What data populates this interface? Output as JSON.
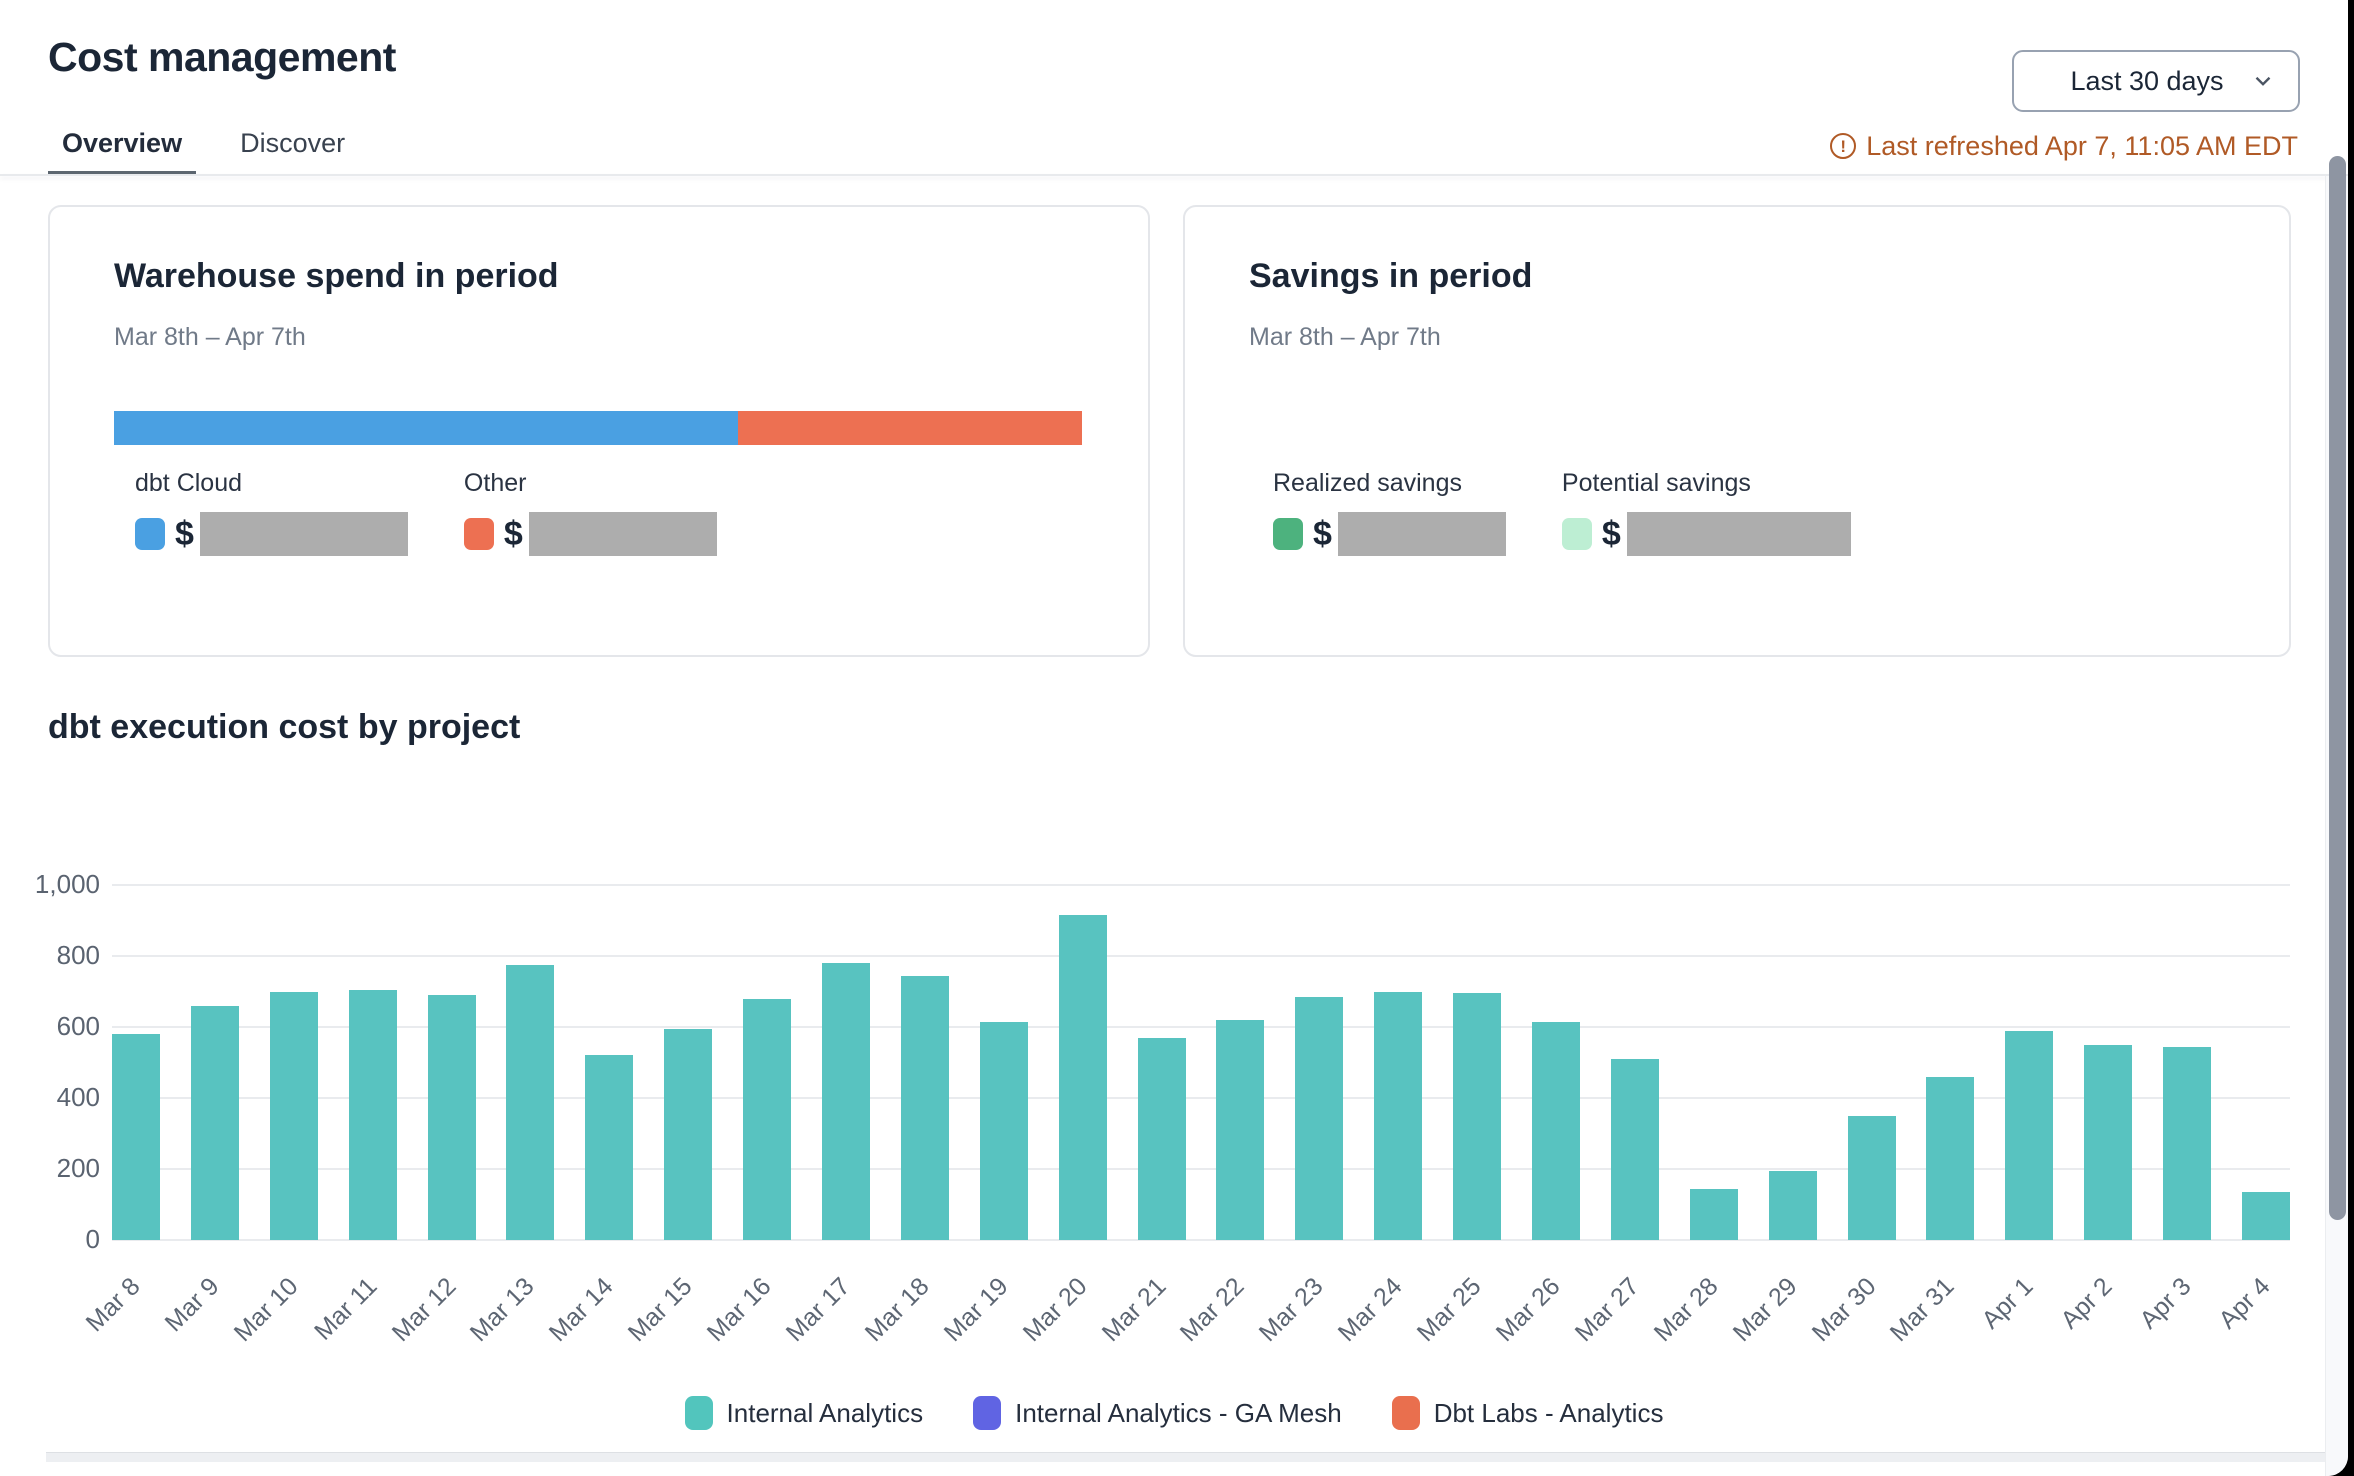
{
  "header": {
    "title": "Cost management",
    "range_select": {
      "value": "Last 30 days"
    },
    "last_refreshed": {
      "icon": "alert-circle",
      "text": "Last refreshed Apr 7, 11:05 AM EDT",
      "color": "#b05a26"
    },
    "tabs": [
      {
        "label": "Overview",
        "active": true
      },
      {
        "label": "Discover",
        "active": false
      }
    ]
  },
  "spend_card": {
    "title": "Warehouse spend in period",
    "subtitle": "Mar 8th – Apr 7th",
    "stacked_bar": {
      "segments": [
        {
          "label": "dbt Cloud",
          "color": "#4aa0e2",
          "percent": 64.5
        },
        {
          "label": "Other",
          "color": "#ed7052",
          "percent": 35.5
        }
      ]
    },
    "legend": [
      {
        "label": "dbt Cloud",
        "swatch_color": "#4aa0e2",
        "currency": "$",
        "value_hidden": true
      },
      {
        "label": "Other",
        "swatch_color": "#ed7052",
        "currency": "$",
        "value_hidden": true
      }
    ]
  },
  "savings_card": {
    "title": "Savings in period",
    "subtitle": "Mar 8th – Apr 7th",
    "legend": [
      {
        "label": "Realized savings",
        "swatch_color": "#4db27e",
        "currency": "$",
        "value_hidden": true
      },
      {
        "label": "Potential savings",
        "swatch_color": "#bdeed3",
        "currency": "$",
        "value_hidden": true
      }
    ]
  },
  "chart_section": {
    "title": "dbt execution cost by project"
  },
  "chart_data": {
    "type": "bar",
    "title": "dbt execution cost by project",
    "categories": [
      "Mar 8",
      "Mar 9",
      "Mar 10",
      "Mar 11",
      "Mar 12",
      "Mar 13",
      "Mar 14",
      "Mar 15",
      "Mar 16",
      "Mar 17",
      "Mar 18",
      "Mar 19",
      "Mar 20",
      "Mar 21",
      "Mar 22",
      "Mar 23",
      "Mar 24",
      "Mar 25",
      "Mar 26",
      "Mar 27",
      "Mar 28",
      "Mar 29",
      "Mar 30",
      "Mar 31",
      "Apr 1",
      "Apr 2",
      "Apr 3",
      "Apr 4"
    ],
    "series": [
      {
        "name": "Internal Analytics",
        "color": "#58c3c0",
        "values": [
          580,
          660,
          700,
          705,
          690,
          775,
          520,
          595,
          680,
          780,
          745,
          615,
          915,
          570,
          620,
          685,
          700,
          695,
          615,
          510,
          145,
          195,
          350,
          460,
          590,
          550,
          545,
          135
        ]
      }
    ],
    "legend_entries": [
      {
        "label": "Internal Analytics",
        "color": "#52c5bd"
      },
      {
        "label": "Internal Analytics - GA Mesh",
        "color": "#6064e3"
      },
      {
        "label": "Dbt Labs - Analytics",
        "color": "#e96f4e"
      }
    ],
    "xlabel": "",
    "ylabel": "",
    "ylim": [
      0,
      1000
    ],
    "yticks": [
      {
        "value": 0,
        "label": "0"
      },
      {
        "value": 200,
        "label": "200"
      },
      {
        "value": 400,
        "label": "400"
      },
      {
        "value": 600,
        "label": "600"
      },
      {
        "value": 800,
        "label": "800"
      },
      {
        "value": 1000,
        "label": "1,000"
      }
    ],
    "grid": true,
    "legend_position": "bottom"
  }
}
